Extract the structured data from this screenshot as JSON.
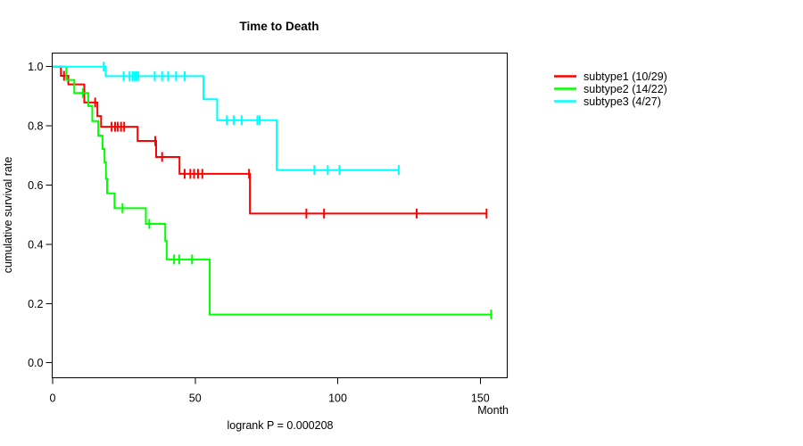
{
  "figure": {
    "title": "Time to Death",
    "xlabel": "Month",
    "ylabel": "cumulative survival rate",
    "footer": "logrank P = 0.000208"
  },
  "legend": {
    "items": [
      {
        "label": "subtype1 (10/29)",
        "color": "#FF0000"
      },
      {
        "label": "subtype2 (14/22)",
        "color": "#00FF00"
      },
      {
        "label": "subtype3 (4/27)",
        "color": "#00FFFF"
      }
    ]
  },
  "chart_data": {
    "type": "line",
    "variant": "kaplan-meier-step",
    "title": "Time to Death",
    "xlabel": "Month",
    "ylabel": "cumulative survival rate",
    "annotation": "logrank P = 0.000208",
    "grid": false,
    "legend_position": "right-outside",
    "xlim": [
      0,
      159.5
    ],
    "ylim": [
      0,
      1.0
    ],
    "xticks": [
      0,
      50,
      100,
      150
    ],
    "xtick_labels": [
      "0",
      "50",
      "100",
      "150"
    ],
    "yticks": [
      0.0,
      0.2,
      0.4,
      0.6,
      0.8,
      1.0
    ],
    "ytick_labels": [
      "0.0",
      "0.2",
      "0.4",
      "0.6",
      "0.8",
      "1.0"
    ],
    "series": [
      {
        "name": "subtype1 (10/29)",
        "color": "#FF0000",
        "events": "10/29",
        "start_survival": 1.0,
        "end_time": 152.2,
        "drops": [
          [
            2.9,
            0.969
          ],
          [
            5.5,
            0.94
          ],
          [
            11.1,
            0.879
          ],
          [
            15.7,
            0.833
          ],
          [
            17.0,
            0.797
          ],
          [
            29.8,
            0.749
          ],
          [
            36.3,
            0.695
          ],
          [
            44.5,
            0.638
          ],
          [
            69.2,
            0.504
          ]
        ],
        "censor_marks": [
          [
            4.0,
            0.969
          ],
          [
            14.9,
            0.879
          ],
          [
            20.7,
            0.797
          ],
          [
            21.9,
            0.797
          ],
          [
            22.8,
            0.797
          ],
          [
            24.0,
            0.797
          ],
          [
            25.1,
            0.797
          ],
          [
            36.0,
            0.749
          ],
          [
            38.4,
            0.695
          ],
          [
            46.3,
            0.638
          ],
          [
            48.3,
            0.638
          ],
          [
            49.6,
            0.638
          ],
          [
            51.0,
            0.638
          ],
          [
            52.5,
            0.638
          ],
          [
            68.9,
            0.638
          ],
          [
            89.0,
            0.504
          ],
          [
            95.2,
            0.504
          ],
          [
            127.7,
            0.504
          ],
          [
            152.2,
            0.504
          ]
        ]
      },
      {
        "name": "subtype2 (14/22)",
        "color": "#00FF00",
        "events": "14/22",
        "start_survival": 1.0,
        "end_time": 153.8,
        "drops": [
          [
            4.8,
            0.955
          ],
          [
            7.6,
            0.911
          ],
          [
            12.5,
            0.867
          ],
          [
            13.9,
            0.816
          ],
          [
            16.0,
            0.767
          ],
          [
            17.5,
            0.722
          ],
          [
            18.2,
            0.677
          ],
          [
            18.7,
            0.622
          ],
          [
            19.1,
            0.572
          ],
          [
            21.7,
            0.522
          ],
          [
            32.7,
            0.469
          ],
          [
            39.5,
            0.412
          ],
          [
            40.0,
            0.349
          ],
          [
            55.1,
            0.163
          ]
        ],
        "censor_marks": [
          [
            10.6,
            0.911
          ],
          [
            24.5,
            0.522
          ],
          [
            33.9,
            0.469
          ],
          [
            42.6,
            0.349
          ],
          [
            44.4,
            0.349
          ],
          [
            48.9,
            0.349
          ],
          [
            153.8,
            0.163
          ]
        ]
      },
      {
        "name": "subtype3 (4/27)",
        "color": "#00FFFF",
        "events": "4/27",
        "start_survival": 1.0,
        "end_time": 121.4,
        "drops": [
          [
            18.6,
            0.968
          ],
          [
            52.9,
            0.89
          ],
          [
            57.7,
            0.819
          ],
          [
            78.6,
            0.651
          ]
        ],
        "censor_marks": [
          [
            17.9,
            1.0
          ],
          [
            24.9,
            0.968
          ],
          [
            27.0,
            0.968
          ],
          [
            28.0,
            0.968
          ],
          [
            28.7,
            0.968
          ],
          [
            29.4,
            0.968
          ],
          [
            30.1,
            0.968
          ],
          [
            35.8,
            0.968
          ],
          [
            38.4,
            0.968
          ],
          [
            40.5,
            0.968
          ],
          [
            43.3,
            0.968
          ],
          [
            46.3,
            0.968
          ],
          [
            61.1,
            0.819
          ],
          [
            63.5,
            0.819
          ],
          [
            66.3,
            0.819
          ],
          [
            71.8,
            0.819
          ],
          [
            72.6,
            0.819
          ],
          [
            91.8,
            0.651
          ],
          [
            96.5,
            0.651
          ],
          [
            100.6,
            0.651
          ],
          [
            121.4,
            0.651
          ]
        ]
      }
    ]
  }
}
